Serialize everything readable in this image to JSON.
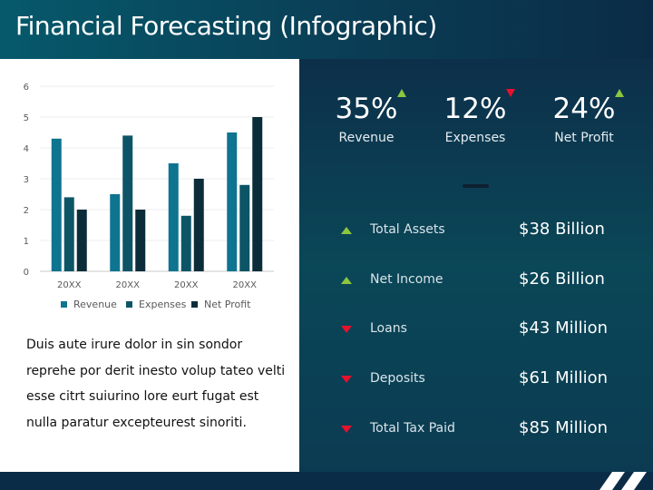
{
  "title": "Financial Forecasting (Infographic)",
  "description": "Duis aute irure dolor in sin sondor reprehe por derit inesto volup tateo velti esse citrt suiurino lore eurt fugat est nulla paratur excepteurest sinoriti.",
  "kpis": [
    {
      "value": "35%",
      "label": "Revenue",
      "trend": "up"
    },
    {
      "value": "12%",
      "label": "Expenses",
      "trend": "down"
    },
    {
      "value": "24%",
      "label": "Net Profit",
      "trend": "up"
    }
  ],
  "metrics": [
    {
      "label": "Total Assets",
      "value": "$38 Billion",
      "trend": "up"
    },
    {
      "label": "Net Income",
      "value": "$26 Billion",
      "trend": "up"
    },
    {
      "label": "Loans",
      "value": "$43 Million",
      "trend": "down"
    },
    {
      "label": "Deposits",
      "value": "$61 Million",
      "trend": "down"
    },
    {
      "label": "Total Tax Paid",
      "value": "$85 Million",
      "trend": "down"
    }
  ],
  "colors": {
    "revenue": "#0e7490",
    "expenses": "#0d5566",
    "net_profit": "#0b2d3a",
    "up": "#8cc63f",
    "down": "#e8112d"
  },
  "chart_data": {
    "type": "bar",
    "categories": [
      "20XX",
      "20XX",
      "20XX",
      "20XX"
    ],
    "series": [
      {
        "name": "Revenue",
        "values": [
          4.3,
          2.5,
          3.5,
          4.5
        ]
      },
      {
        "name": "Expenses",
        "values": [
          2.4,
          4.4,
          1.8,
          2.8
        ]
      },
      {
        "name": "Net Profit",
        "values": [
          2,
          2,
          3,
          5
        ]
      }
    ],
    "yticks": [
      "0",
      "1",
      "2",
      "3",
      "4",
      "5",
      "6"
    ],
    "ylim": [
      0,
      6
    ],
    "title": "",
    "xlabel": "",
    "ylabel": "",
    "legend": "bottom",
    "grid": true
  }
}
